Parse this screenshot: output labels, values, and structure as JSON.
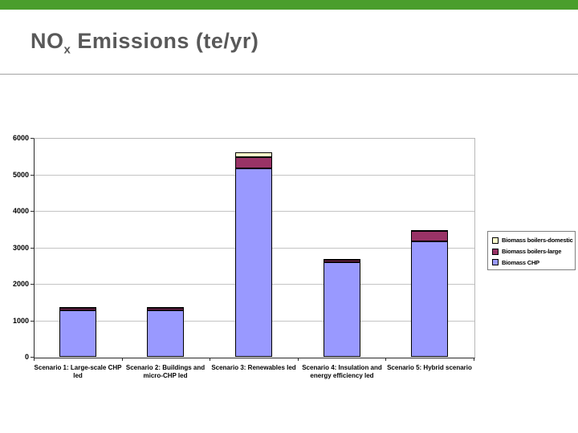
{
  "page": {
    "accent_color": "#4a9e2c",
    "title_color": "#595959"
  },
  "title": {
    "prefix": "NO",
    "subscript": "x",
    "suffix": " Emissions (te/yr)"
  },
  "chart_data": {
    "type": "bar",
    "stacked": true,
    "title": "NOx Emissions (te/yr)",
    "xlabel": "",
    "ylabel": "",
    "ylim": [
      0,
      6000
    ],
    "yticks": [
      0,
      1000,
      2000,
      3000,
      4000,
      5000,
      6000
    ],
    "grid": true,
    "legend_position": "right",
    "categories": [
      [
        "Scenario 1: Large-scale CHP",
        "led"
      ],
      [
        "Scenario 2: Buildings and",
        "micro-CHP led"
      ],
      [
        "Scenario 3: Renewables led"
      ],
      [
        "Scenario 4: Insulation and",
        "energy efficiency led"
      ],
      [
        "Scenario 5: Hybrid scenario"
      ]
    ],
    "series": [
      {
        "name": "Biomass CHP",
        "color": "#9999FF",
        "values": [
          1280,
          1280,
          5170,
          2600,
          3170
        ]
      },
      {
        "name": "Biomass boilers-large",
        "color": "#993366",
        "values": [
          60,
          60,
          310,
          70,
          280
        ]
      },
      {
        "name": "Biomass boilers-domestic",
        "color": "#FFFFCC",
        "values": [
          15,
          15,
          130,
          15,
          30
        ]
      }
    ],
    "legend": {
      "entries": [
        {
          "label": "Biomass boilers-domestic",
          "color": "#FFFFCC"
        },
        {
          "label": "Biomass boilers-large",
          "color": "#993366"
        },
        {
          "label": "Biomass CHP",
          "color": "#9999FF"
        }
      ]
    }
  }
}
